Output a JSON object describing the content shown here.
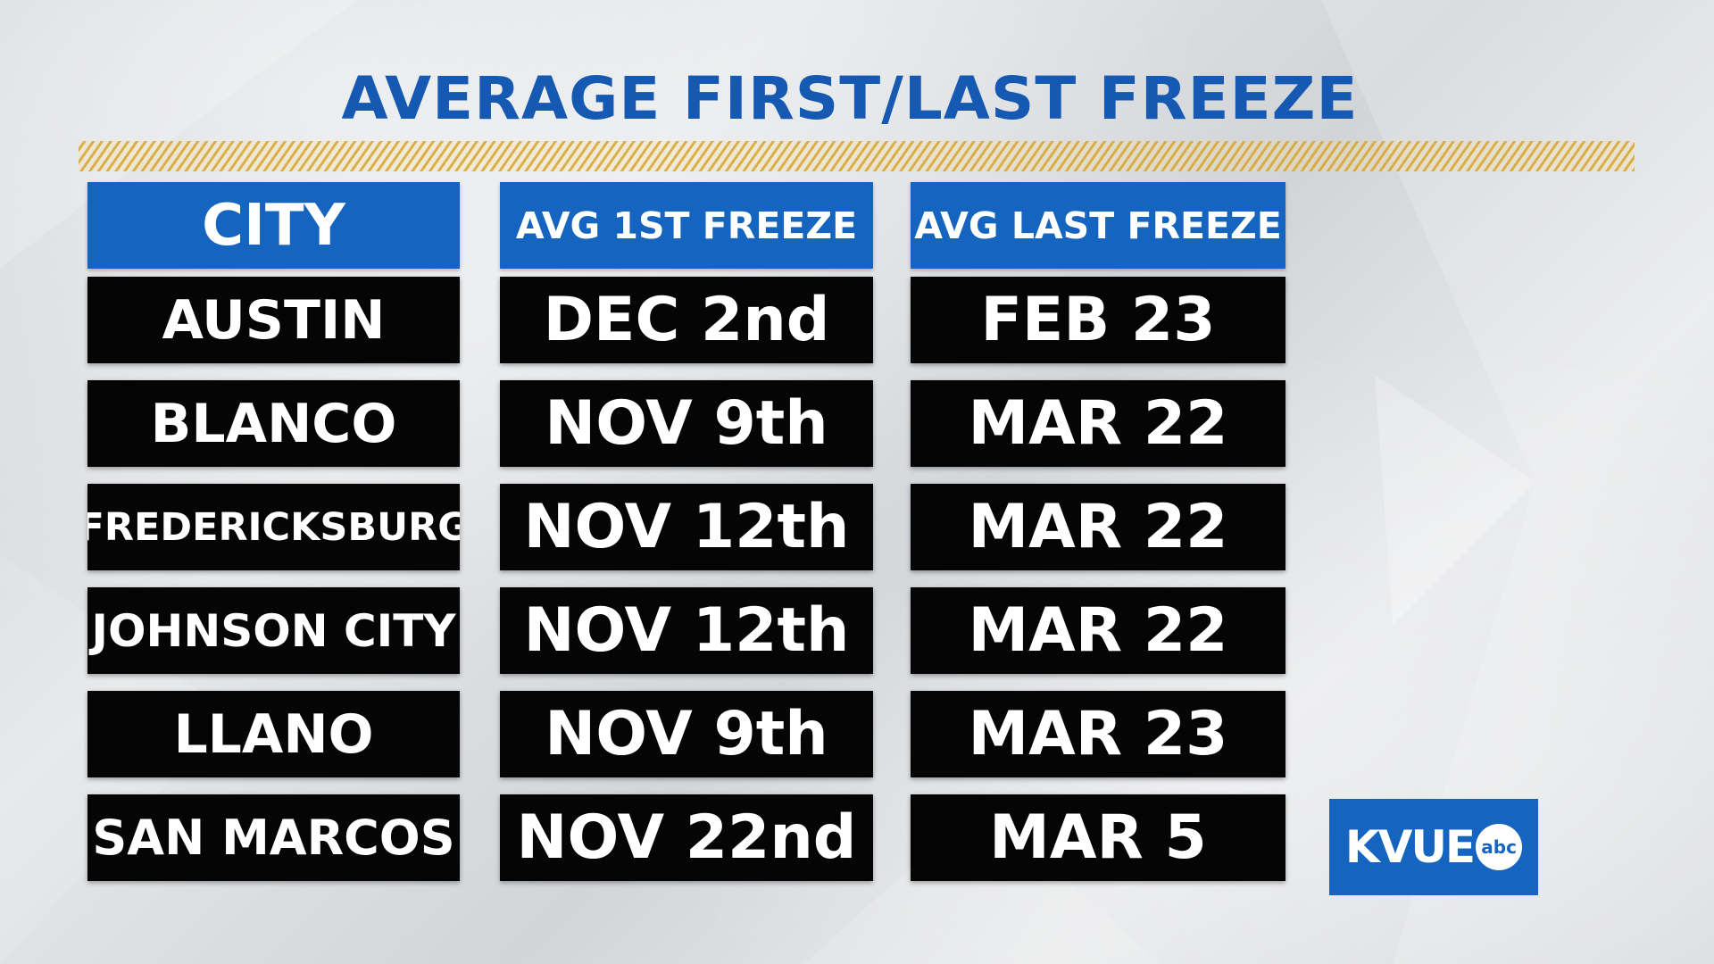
{
  "title": "AVERAGE FIRST/LAST FREEZE",
  "table": {
    "headers": {
      "city": "CITY",
      "first": "AVG 1ST FREEZE",
      "last": "AVG LAST FREEZE"
    },
    "rows": [
      {
        "city": "AUSTIN",
        "first": "DEC 2nd",
        "last": "FEB 23"
      },
      {
        "city": "BLANCO",
        "first": "NOV 9th",
        "last": "MAR 22"
      },
      {
        "city": "FREDERICKSBURG",
        "first": "NOV 12th",
        "last": "MAR 22"
      },
      {
        "city": "JOHNSON CITY",
        "first": "NOV 12th",
        "last": "MAR 22"
      },
      {
        "city": "LLANO",
        "first": "NOV 9th",
        "last": "MAR 23"
      },
      {
        "city": "SAN MARCOS",
        "first": "NOV 22nd",
        "last": "MAR 5"
      }
    ]
  },
  "logo": {
    "text": "KVUE",
    "badge": "abc"
  },
  "colors": {
    "accent": "#1565c0",
    "title": "#1559b3",
    "cell": "#050505",
    "hatch": "#d9a52c"
  }
}
